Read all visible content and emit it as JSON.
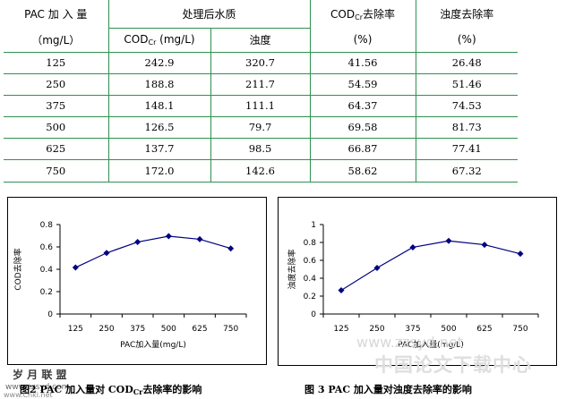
{
  "table": {
    "header": {
      "pac_dose_label": "PAC  加 入 量",
      "pac_dose_unit": "（mg/L）",
      "treated_water_label": "处理后水质",
      "cod_label": "COD",
      "cod_sub": "Cr",
      "cod_unit": " (mg/L)",
      "turbidity_label": "浊度",
      "cod_removal_label": "COD",
      "cod_removal_sub": "Cr",
      "cod_removal_suffix": "去除率",
      "cod_removal_unit": "(%)",
      "turbidity_removal_label": "浊度去除率",
      "turbidity_removal_unit": "(%)"
    },
    "rows": [
      [
        "125",
        "242.9",
        "320.7",
        "41.56",
        "26.48"
      ],
      [
        "250",
        "188.8",
        "211.7",
        "54.59",
        "51.46"
      ],
      [
        "375",
        "148.1",
        "111.1",
        "64.37",
        "74.53"
      ],
      [
        "500",
        "126.5",
        "79.7",
        "69.58",
        "81.73"
      ],
      [
        "625",
        "137.7",
        "98.5",
        "66.87",
        "77.41"
      ],
      [
        "750",
        "172.0",
        "142.6",
        "58.62",
        "67.32"
      ]
    ]
  },
  "chart_data": [
    {
      "type": "line",
      "x": [
        "125",
        "250",
        "375",
        "500",
        "625",
        "750"
      ],
      "values": [
        0.4156,
        0.5459,
        0.6437,
        0.6958,
        0.6687,
        0.5862
      ],
      "xlabel": "PAC加入量(mg/L)",
      "ylabel": "COD去除率",
      "ylim": [
        0,
        0.8
      ],
      "yticks": [
        "0",
        "0.2",
        "0.4",
        "0.6",
        "0.8"
      ],
      "line_color": "#000080"
    },
    {
      "type": "line",
      "x": [
        "125",
        "250",
        "375",
        "500",
        "625",
        "750"
      ],
      "values": [
        0.2648,
        0.5146,
        0.7453,
        0.8173,
        0.7741,
        0.6732
      ],
      "xlabel": "PAC加入量(mg/L)",
      "ylabel": "浊度去除率",
      "ylim": [
        0,
        1
      ],
      "yticks": [
        "0",
        "0.2",
        "0.4",
        "0.6",
        "0.8",
        "1"
      ],
      "line_color": "#000080"
    }
  ],
  "captions": {
    "fig2_prefix": "图2  PAC 加入量对 COD",
    "fig2_sub": "Cr",
    "fig2_suffix": "去除率的影响",
    "fig3": "图 3   PAC 加入量对浊度去除率的影响"
  },
  "watermarks": {
    "logo": "岁 月 联 盟",
    "site_url": "www.zzsyd.com",
    "site_bottom": "www.Cnki.net",
    "chinese_site": "中国论文下载中心",
    "chinese_url": "www.zzsyd.net"
  }
}
